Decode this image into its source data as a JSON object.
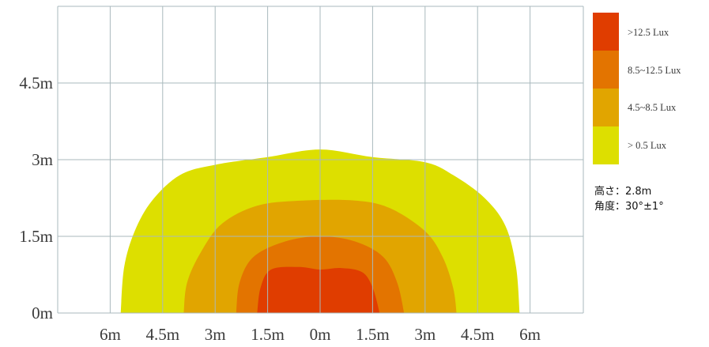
{
  "chart_data": {
    "type": "area",
    "title": "",
    "xlabel": "",
    "ylabel": "",
    "x_tick_labels": [
      "6m",
      "4.5m",
      "3m",
      "1.5m",
      "0m",
      "1.5m",
      "3m",
      "4.5m",
      "6m"
    ],
    "y_tick_labels": [
      "0m",
      "1.5m",
      "3m",
      "4.5m"
    ],
    "y_ticks": [
      0,
      1.5,
      3,
      4.5
    ],
    "xlim": [
      -6,
      6
    ],
    "ylim": [
      0,
      6
    ],
    "grid": true,
    "legend_position": "right",
    "legend": [
      {
        "label": ">12.5 Lux",
        "color": "#E03D00"
      },
      {
        "label": "8.5~12.5 Lux",
        "color": "#E37400"
      },
      {
        "label": "4.5~8.5 Lux",
        "color": "#E1A500"
      },
      {
        "label": "> 0.5 Lux",
        "color": "#DDDF00"
      }
    ],
    "series": [
      {
        "name": "> 0.5 Lux",
        "color": "#DDDF00",
        "points": [
          [
            -5.7,
            0
          ],
          [
            -5.6,
            0.9
          ],
          [
            -5.3,
            1.6
          ],
          [
            -4.8,
            2.2
          ],
          [
            -4.0,
            2.7
          ],
          [
            -3.0,
            2.9
          ],
          [
            -1.5,
            3.05
          ],
          [
            0,
            3.2
          ],
          [
            1.5,
            3.05
          ],
          [
            3.0,
            2.95
          ],
          [
            3.8,
            2.7
          ],
          [
            4.7,
            2.25
          ],
          [
            5.3,
            1.7
          ],
          [
            5.6,
            0.9
          ],
          [
            5.7,
            0
          ]
        ]
      },
      {
        "name": "4.5~8.5 Lux",
        "color": "#E1A500",
        "points": [
          [
            -3.9,
            0
          ],
          [
            -3.8,
            0.6
          ],
          [
            -3.4,
            1.2
          ],
          [
            -2.8,
            1.75
          ],
          [
            -1.8,
            2.1
          ],
          [
            -0.5,
            2.2
          ],
          [
            1.0,
            2.2
          ],
          [
            2.0,
            2.05
          ],
          [
            3.0,
            1.6
          ],
          [
            3.5,
            1.1
          ],
          [
            3.8,
            0.5
          ],
          [
            3.9,
            0
          ]
        ]
      },
      {
        "name": "8.5~12.5 Lux",
        "color": "#E37400",
        "points": [
          [
            -2.4,
            0
          ],
          [
            -2.3,
            0.6
          ],
          [
            -1.9,
            1.1
          ],
          [
            -1.0,
            1.4
          ],
          [
            0,
            1.5
          ],
          [
            1.0,
            1.4
          ],
          [
            1.8,
            1.1
          ],
          [
            2.2,
            0.6
          ],
          [
            2.4,
            0
          ]
        ]
      },
      {
        "name": ">12.5 Lux",
        "color": "#E03D00",
        "points": [
          [
            -1.8,
            0
          ],
          [
            -1.7,
            0.5
          ],
          [
            -1.4,
            0.85
          ],
          [
            -0.6,
            0.9
          ],
          [
            0,
            0.85
          ],
          [
            0.6,
            0.88
          ],
          [
            1.2,
            0.8
          ],
          [
            1.5,
            0.5
          ],
          [
            1.7,
            0
          ]
        ]
      }
    ],
    "notes": [
      "高さ：2.8m",
      "角度：30°±1°"
    ]
  }
}
